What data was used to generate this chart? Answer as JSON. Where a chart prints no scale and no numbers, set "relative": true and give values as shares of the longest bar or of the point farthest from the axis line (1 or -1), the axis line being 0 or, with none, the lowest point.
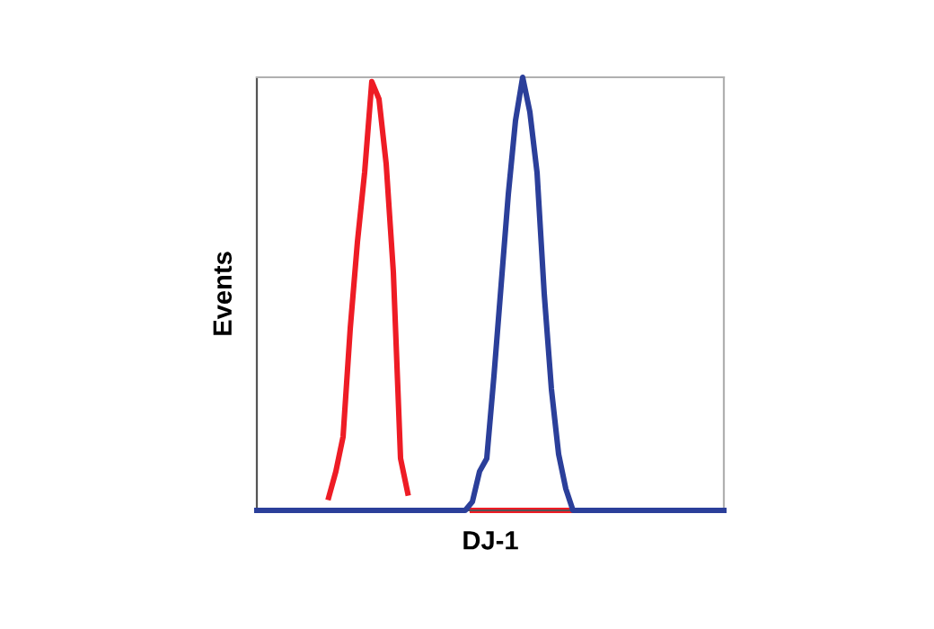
{
  "chart_data": {
    "type": "line",
    "relative": true,
    "xlabel": "DJ-1",
    "ylabel": "Events",
    "marker": "none",
    "line_style": "solid",
    "categories": [
      null,
      null,
      null,
      null,
      null,
      null,
      null,
      null,
      null,
      null,
      null,
      null,
      null,
      null,
      null,
      null,
      null,
      null,
      null,
      null,
      null,
      null,
      null,
      null,
      null,
      null,
      null,
      null,
      null,
      null,
      null,
      null,
      null,
      null,
      null,
      null,
      null,
      null,
      null,
      null,
      null,
      null,
      null,
      null,
      null,
      null,
      null,
      null,
      null,
      null,
      null,
      null,
      null,
      null,
      null,
      null,
      null,
      null,
      null,
      null,
      null,
      null,
      null,
      null,
      null,
      null
    ],
    "series": [
      {
        "color": "#ee1c25",
        "values": [
          null,
          null,
          null,
          null,
          null,
          null,
          null,
          null,
          null,
          null,
          0.03,
          0.09,
          0.17,
          0.42,
          0.62,
          0.78,
          0.99,
          0.95,
          0.8,
          0.55,
          0.12,
          0.04,
          null,
          null,
          null,
          null,
          null,
          null,
          null,
          null,
          0,
          0,
          0,
          0,
          0,
          0,
          0,
          0,
          0,
          0,
          0,
          0,
          0,
          0,
          0,
          null,
          null,
          null,
          null,
          null,
          null,
          null,
          null,
          null,
          null,
          null,
          null,
          null,
          null,
          null,
          null,
          null,
          null,
          null,
          null,
          null
        ]
      },
      {
        "color": "#2b3f9a",
        "values": [
          0,
          0,
          0,
          0,
          0,
          0,
          0,
          0,
          0,
          0,
          0,
          0,
          0,
          0,
          0,
          0,
          0,
          0,
          0,
          0,
          0,
          0,
          0,
          0,
          0,
          0,
          0,
          0,
          0,
          0,
          0.02,
          0.09,
          0.12,
          0.31,
          0.52,
          0.73,
          0.9,
          1,
          0.92,
          0.78,
          0.5,
          0.28,
          0.13,
          0.05,
          0,
          0,
          0,
          0,
          0,
          0,
          0,
          0,
          0,
          0,
          0,
          0,
          0,
          0,
          0,
          0,
          0,
          0,
          0,
          0,
          0,
          0
        ]
      }
    ]
  }
}
